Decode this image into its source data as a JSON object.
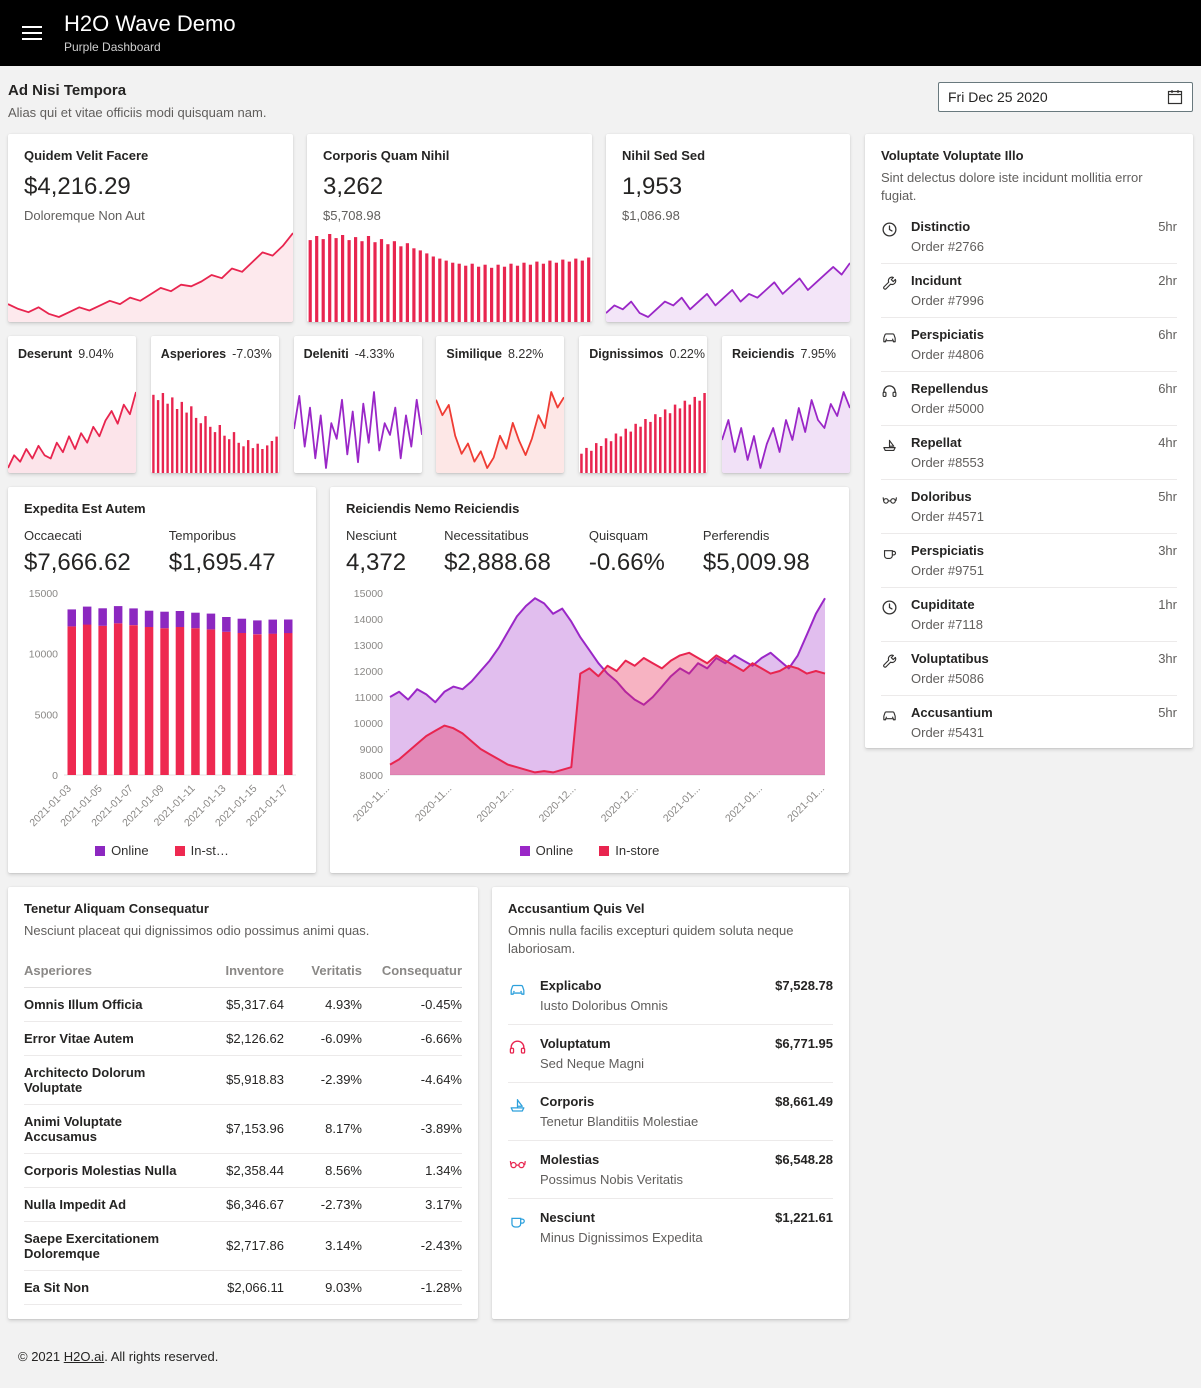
{
  "colors": {
    "red": "#e8254f",
    "purple": "#9a27c7",
    "blue": "#2da0dc",
    "header_bg": "#000000",
    "page_bg": "#f2f2f2"
  },
  "header": {
    "title": "H2O Wave Demo",
    "subtitle": "Purple Dashboard"
  },
  "page": {
    "title": "Ad Nisi Tempora",
    "subtitle": "Alias qui et vitae officiis modi quisquam nam.",
    "date_value": "Fri Dec 25 2020"
  },
  "stat_cards": [
    {
      "title": "Quidem Velit Facere",
      "value": "$4,216.29",
      "aux": "Doloremque Non Aut",
      "chart": {
        "type": "area",
        "color": "#e8254f",
        "fill": "rgba(232,37,79,0.10)",
        "h": 92,
        "values": [
          31,
          29.5,
          28.5,
          30,
          28,
          27,
          28.5,
          30,
          29,
          30.5,
          32,
          31,
          33,
          32,
          34,
          36,
          35,
          37,
          36.5,
          38,
          40,
          39,
          42,
          41,
          44,
          47,
          46,
          49,
          53
        ]
      }
    },
    {
      "title": "Corporis Quam Nihil",
      "value": "3,262",
      "aux": "$5,708.98",
      "chart": {
        "type": "bars",
        "color": "#e8254f",
        "h": 92,
        "values": [
          80,
          84,
          81,
          86,
          82,
          85,
          80,
          83,
          79,
          84,
          78,
          81,
          76,
          79,
          74,
          77,
          72,
          70,
          67,
          64,
          62,
          60,
          58,
          57,
          55,
          57,
          54,
          56,
          53,
          56,
          54,
          57,
          55,
          58,
          56,
          59,
          57,
          60,
          58,
          61,
          59,
          62,
          60,
          63
        ]
      }
    },
    {
      "title": "Nihil Sed Sed",
      "value": "1,953",
      "aux": "$1,086.98",
      "chart": {
        "type": "area",
        "color": "#9a27c7",
        "fill": "rgba(154,39,199,0.12)",
        "h": 62,
        "values": [
          52,
          54,
          53,
          55,
          52,
          51,
          53,
          55,
          54,
          56,
          53,
          55,
          57,
          54,
          56,
          58,
          55,
          57,
          56,
          58,
          60,
          57,
          59,
          61,
          58,
          60,
          62,
          64,
          62,
          65
        ]
      }
    }
  ],
  "small_cards": [
    {
      "title": "Deserunt",
      "value": "9.04%",
      "chart": {
        "type": "area",
        "color": "#e8254f",
        "fill": "rgba(232,37,79,0.12)",
        "h": 84,
        "values": [
          42,
          46,
          44,
          48,
          45,
          49,
          46,
          45,
          50,
          47,
          52,
          48,
          53,
          50,
          55,
          52,
          57,
          60,
          56,
          62,
          59,
          66
        ]
      }
    },
    {
      "title": "Asperiores",
      "value": "-7.03%",
      "chart": {
        "type": "bars",
        "color": "#e8254f",
        "h": 84,
        "values": [
          88,
          82,
          90,
          78,
          85,
          72,
          80,
          68,
          75,
          62,
          56,
          64,
          52,
          46,
          54,
          42,
          38,
          46,
          34,
          30,
          37,
          28,
          33,
          27,
          31,
          36,
          41
        ]
      }
    },
    {
      "title": "Deleniti",
      "value": "-4.33%",
      "chart": {
        "type": "line",
        "color": "#9a27c7",
        "h": 84,
        "values": [
          55,
          72,
          46,
          66,
          40,
          62,
          35,
          58,
          50,
          70,
          42,
          64,
          38,
          68,
          48,
          74,
          44,
          58,
          52,
          66,
          40,
          62,
          46,
          70,
          52
        ]
      }
    },
    {
      "title": "Similique",
      "value": "8.22%",
      "chart": {
        "type": "area",
        "color": "#ef3c34",
        "fill": "rgba(239,60,52,0.12)",
        "h": 84,
        "values": [
          74,
          62,
          70,
          46,
          32,
          40,
          26,
          34,
          21,
          29,
          46,
          36,
          56,
          42,
          31,
          44,
          62,
          52,
          80,
          68,
          76
        ]
      }
    },
    {
      "title": "Dignissimos",
      "value": "0.22%",
      "chart": {
        "type": "bars",
        "color": "#e8254f",
        "h": 84,
        "values": [
          20,
          26,
          23,
          31,
          28,
          36,
          33,
          41,
          38,
          46,
          43,
          51,
          48,
          56,
          53,
          61,
          58,
          66,
          62,
          71,
          67,
          75,
          71,
          79,
          75,
          83
        ]
      }
    },
    {
      "title": "Reiciendis",
      "value": "7.95%",
      "chart": {
        "type": "area",
        "color": "#9a27c7",
        "fill": "rgba(154,39,199,0.14)",
        "h": 84,
        "values": [
          56,
          61,
          53,
          59,
          51,
          57,
          49,
          55,
          59,
          53,
          61,
          56,
          64,
          58,
          66,
          61,
          59,
          65,
          62,
          68,
          64
        ]
      }
    }
  ],
  "orders_panel": {
    "title": "Voluptate Voluptate Illo",
    "subtitle": "Sint delectus dolore iste incidunt mollitia error fugiat.",
    "items": [
      {
        "icon": "clock-icon",
        "name": "Distinctio",
        "order": "Order #2766",
        "time": "5hr"
      },
      {
        "icon": "wrench-icon",
        "name": "Incidunt",
        "order": "Order #7996",
        "time": "2hr"
      },
      {
        "icon": "car-icon",
        "name": "Perspiciatis",
        "order": "Order #4806",
        "time": "6hr"
      },
      {
        "icon": "headphones-icon",
        "name": "Repellendus",
        "order": "Order #5000",
        "time": "6hr"
      },
      {
        "icon": "boat-icon",
        "name": "Repellat",
        "order": "Order #8553",
        "time": "4hr"
      },
      {
        "icon": "glasses-icon",
        "name": "Doloribus",
        "order": "Order #4571",
        "time": "5hr"
      },
      {
        "icon": "cup-icon",
        "name": "Perspiciatis",
        "order": "Order #9751",
        "time": "3hr"
      },
      {
        "icon": "clock-icon",
        "name": "Cupiditate",
        "order": "Order #7118",
        "time": "1hr"
      },
      {
        "icon": "wrench-icon",
        "name": "Voluptatibus",
        "order": "Order #5086",
        "time": "3hr"
      },
      {
        "icon": "car-icon",
        "name": "Accusantium",
        "order": "Order #5431",
        "time": "5hr"
      }
    ]
  },
  "expedita": {
    "title": "Expedita Est Autem",
    "stats": [
      {
        "label": "Occaecati",
        "value": "$7,666.62"
      },
      {
        "label": "Temporibus",
        "value": "$1,695.47"
      }
    ],
    "chart_data": {
      "type": "stacked-bars",
      "categories": [
        "2021-01-03",
        "2021-01-04",
        "2021-01-05",
        "2021-01-06",
        "2021-01-07",
        "2021-01-08",
        "2021-01-09",
        "2021-01-10",
        "2021-01-11",
        "2021-01-12",
        "2021-01-13",
        "2021-01-14",
        "2021-01-15",
        "2021-01-16",
        "2021-01-17"
      ],
      "xtick_every": 2,
      "ylim": [
        0,
        15000
      ],
      "yticks": [
        0,
        5000,
        10000,
        15000
      ],
      "series": [
        {
          "name": "In-store",
          "color": "#ee2950",
          "values": [
            12250,
            12400,
            12300,
            12500,
            12350,
            12200,
            12100,
            12200,
            12100,
            12000,
            11800,
            11700,
            11600,
            11650,
            11700
          ]
        },
        {
          "name": "Online",
          "color": "#8c28c0",
          "values": [
            1400,
            1480,
            1440,
            1420,
            1380,
            1340,
            1360,
            1320,
            1280,
            1300,
            1220,
            1180,
            1140,
            1160,
            1120
          ]
        }
      ],
      "legend": [
        {
          "label": "Online",
          "color": "#8c28c0"
        },
        {
          "label": "In-st…",
          "color": "#ee2950"
        }
      ]
    }
  },
  "reiciendis": {
    "title": "Reiciendis Nemo Reiciendis",
    "stats": [
      {
        "label": "Nesciunt",
        "value": "4,372"
      },
      {
        "label": "Necessitatibus",
        "value": "$2,888.68"
      },
      {
        "label": "Quisquam",
        "value": "-0.66%"
      },
      {
        "label": "Perferendis",
        "value": "$5,009.98"
      }
    ],
    "chart_data": {
      "type": "areas",
      "ylim": [
        8000,
        15000
      ],
      "yticks": [
        8000,
        9000,
        10000,
        11000,
        12000,
        13000,
        14000,
        15000
      ],
      "x_labels": [
        "2020-11...",
        "2020-11...",
        "2020-12...",
        "2020-12...",
        "2020-12...",
        "2021-01...",
        "2021-01...",
        "2021-01..."
      ],
      "series": [
        {
          "name": "Online",
          "color": "#9a27c7",
          "fill": "rgba(154,39,199,0.30)",
          "values": [
            11000,
            11200,
            10900,
            11300,
            11100,
            10800,
            11200,
            11400,
            11300,
            11600,
            12000,
            12400,
            12900,
            13500,
            14100,
            14500,
            14800,
            14600,
            14200,
            14400,
            13900,
            13300,
            12800,
            12300,
            11900,
            11600,
            11200,
            10900,
            10700,
            11000,
            11400,
            11800,
            12100,
            11900,
            12300,
            12100,
            12500,
            12300,
            12600,
            12400,
            12200,
            12500,
            12700,
            12400,
            12100,
            12600,
            13400,
            14200,
            14800
          ]
        },
        {
          "name": "In-store",
          "color": "#e8254f",
          "fill": "rgba(232,37,79,0.35)",
          "values": [
            8400,
            8600,
            8900,
            9200,
            9500,
            9700,
            9900,
            9800,
            9600,
            9300,
            9000,
            8800,
            8600,
            8400,
            8300,
            8200,
            8100,
            8150,
            8100,
            8200,
            8300,
            11900,
            12100,
            11800,
            12200,
            12000,
            12400,
            12200,
            12500,
            12300,
            12100,
            12400,
            12600,
            12700,
            12500,
            12300,
            12600,
            12400,
            12200,
            12000,
            12300,
            12100,
            11900,
            12000,
            12200,
            12100,
            11900,
            12000,
            11900
          ]
        }
      ],
      "legend": [
        {
          "label": "Online",
          "color": "#9a27c7"
        },
        {
          "label": "In-store",
          "color": "#e8254f"
        }
      ]
    }
  },
  "table_card": {
    "title": "Tenetur Aliquam Consequatur",
    "subtitle": "Nesciunt placeat qui dignissimos odio possimus animi quas.",
    "columns": [
      "Asperiores",
      "Inventore",
      "Veritatis",
      "Consequatur"
    ],
    "rows": [
      {
        "name": "Omnis Illum Officia",
        "inventore": "$5,317.64",
        "veritatis": "4.93%",
        "consequatur": "-0.45%"
      },
      {
        "name": "Error Vitae Autem",
        "inventore": "$2,126.62",
        "veritatis": "-6.09%",
        "consequatur": "-6.66%"
      },
      {
        "name": "Architecto Dolorum Voluptate",
        "inventore": "$5,918.83",
        "veritatis": "-2.39%",
        "consequatur": "-4.64%"
      },
      {
        "name": "Animi Voluptate Accusamus",
        "inventore": "$7,153.96",
        "veritatis": "8.17%",
        "consequatur": "-3.89%"
      },
      {
        "name": "Corporis Molestias Nulla",
        "inventore": "$2,358.44",
        "veritatis": "8.56%",
        "consequatur": "1.34%"
      },
      {
        "name": "Nulla Impedit Ad",
        "inventore": "$6,346.67",
        "veritatis": "-2.73%",
        "consequatur": "3.17%"
      },
      {
        "name": "Saepe Exercitationem Doloremque",
        "inventore": "$2,717.86",
        "veritatis": "3.14%",
        "consequatur": "-2.43%"
      },
      {
        "name": "Ea Sit Non",
        "inventore": "$2,066.11",
        "veritatis": "9.03%",
        "consequatur": "-1.28%"
      }
    ]
  },
  "products_panel": {
    "title": "Accusantium Quis Vel",
    "subtitle": "Omnis nulla facilis excepturi quidem soluta neque laboriosam.",
    "items": [
      {
        "icon": "car-icon",
        "color": "#2da0dc",
        "name": "Explicabo",
        "sub": "Iusto Doloribus Omnis",
        "price": "$7,528.78"
      },
      {
        "icon": "headphones-icon",
        "color": "#e8254f",
        "name": "Voluptatum",
        "sub": "Sed Neque Magni",
        "price": "$6,771.95"
      },
      {
        "icon": "boat-icon",
        "color": "#2da0dc",
        "name": "Corporis",
        "sub": "Tenetur Blanditiis Molestiae",
        "price": "$8,661.49"
      },
      {
        "icon": "glasses-icon",
        "color": "#e8254f",
        "name": "Molestias",
        "sub": "Possimus Nobis Veritatis",
        "price": "$6,548.28"
      },
      {
        "icon": "cup-icon",
        "color": "#2da0dc",
        "name": "Nesciunt",
        "sub": "Minus Dignissimos Expedita",
        "price": "$1,221.61"
      }
    ]
  },
  "footer": {
    "prefix": "© 2021 ",
    "link": "H2O.ai",
    "suffix": ". All rights reserved."
  }
}
